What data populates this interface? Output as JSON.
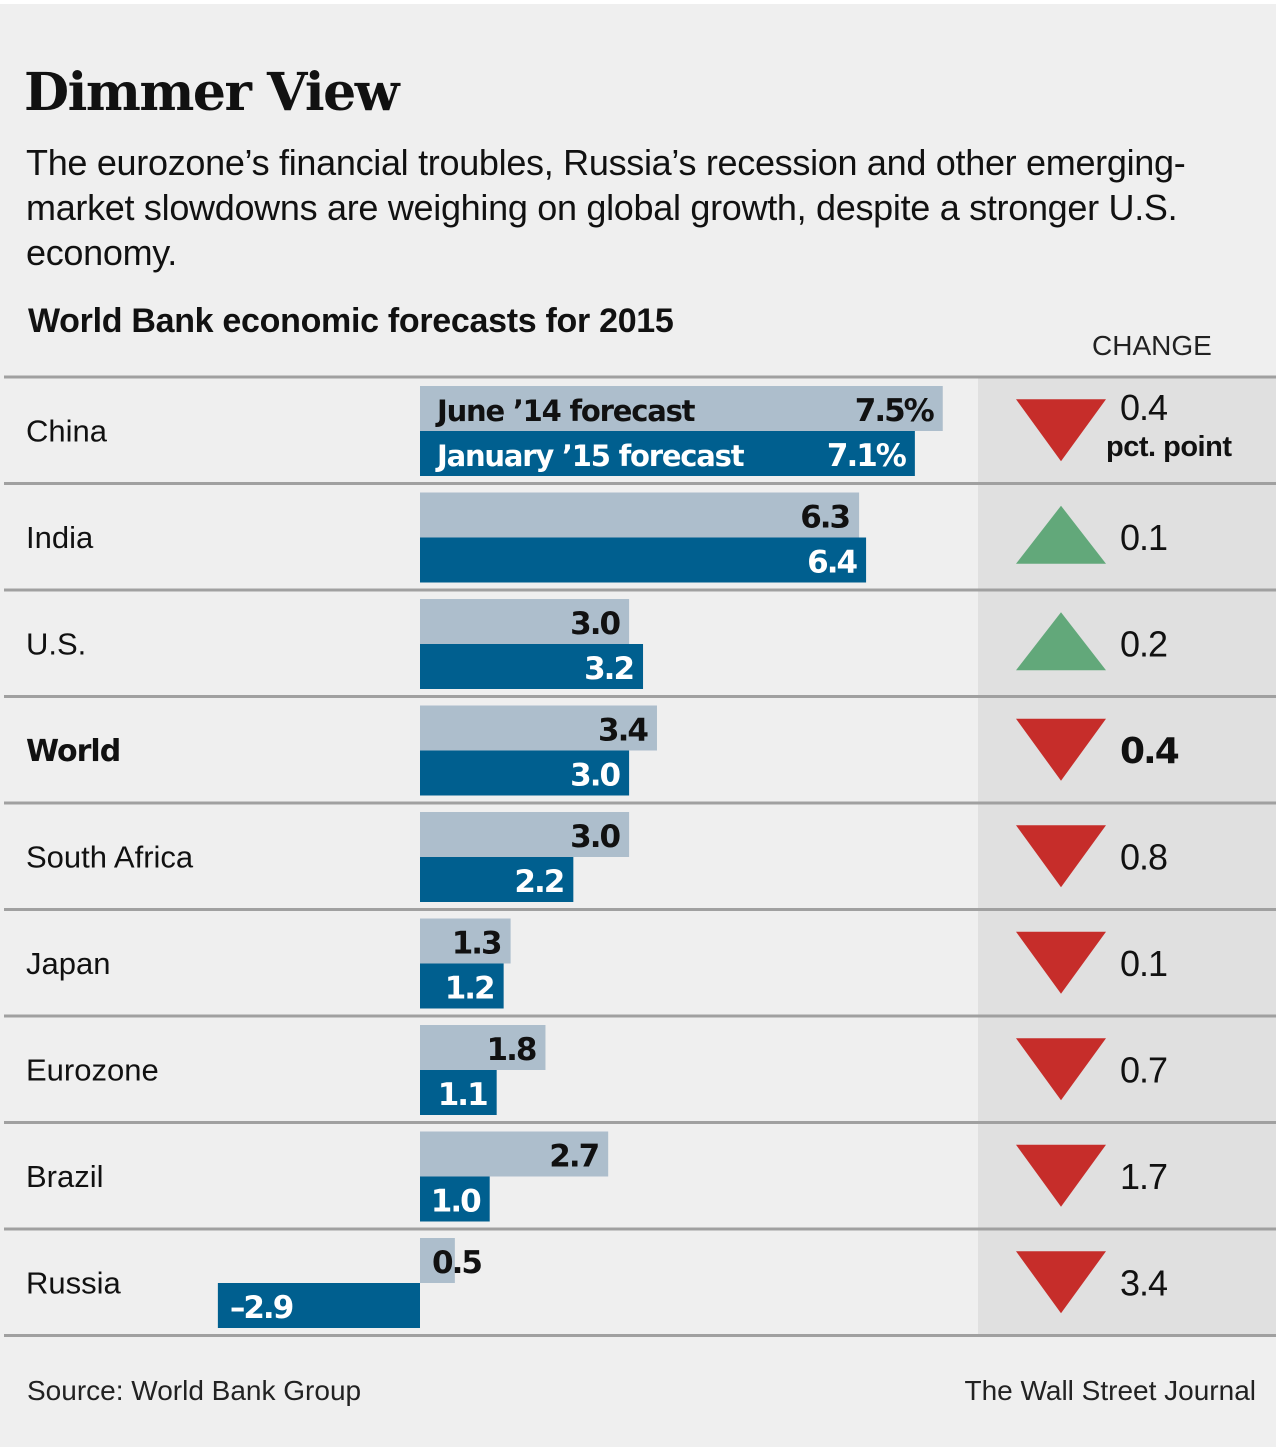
{
  "header": {
    "title": "Dimmer View",
    "subtitle": "The eurozone’s financial troubles, Russia’s recession and other emerging-market slowdowns are weighing on global growth, despite a stronger U.S. economy."
  },
  "footer": {
    "source": "Source: World Bank Group",
    "credit": "The Wall Street Journal"
  },
  "colors": {
    "background": "#efefef",
    "change_column": "#e0e0e0",
    "june_bar": "#adbecc",
    "january_bar": "#005f8f",
    "decrease": "#c62d2a",
    "increase": "#62a87a",
    "divider": "#a0a0a0"
  },
  "chart_data": {
    "type": "bar",
    "orientation": "horizontal",
    "title": "World Bank economic forecasts for 2015",
    "xlabel": "",
    "ylabel": "",
    "unit": "%",
    "change_header": "CHANGE",
    "change_unit_label": "pct. point",
    "xlim": [
      -2.9,
      7.5
    ],
    "grid": false,
    "categories": [
      "China",
      "India",
      "U.S.",
      "World",
      "South Africa",
      "Japan",
      "Eurozone",
      "Brazil",
      "Russia"
    ],
    "bold_categories": [
      "World"
    ],
    "series": [
      {
        "name": "June ’14 forecast",
        "values": [
          7.5,
          6.3,
          3.0,
          3.4,
          3.0,
          1.3,
          1.8,
          2.7,
          0.5
        ],
        "labels": [
          "7.5%",
          "6.3",
          "3.0",
          "3.4",
          "3.0",
          "1.3",
          "1.8",
          "2.7",
          "0.5"
        ]
      },
      {
        "name": "January ’15 forecast",
        "values": [
          7.1,
          6.4,
          3.2,
          3.0,
          2.2,
          1.2,
          1.1,
          1.0,
          -2.9
        ],
        "labels": [
          "7.1%",
          "6.4",
          "3.2",
          "3.0",
          "2.2",
          "1.2",
          "1.1",
          "1.0",
          "–2.9"
        ]
      }
    ],
    "change": {
      "directions": [
        "down",
        "up",
        "up",
        "down",
        "down",
        "down",
        "down",
        "down",
        "down"
      ],
      "values": [
        0.4,
        0.1,
        0.2,
        0.4,
        0.8,
        0.1,
        0.7,
        1.7,
        3.4
      ],
      "labels": [
        "0.4",
        "0.1",
        "0.2",
        "0.4",
        "0.8",
        "0.1",
        "0.7",
        "1.7",
        "3.4"
      ]
    },
    "legend": "inline-first-row"
  }
}
